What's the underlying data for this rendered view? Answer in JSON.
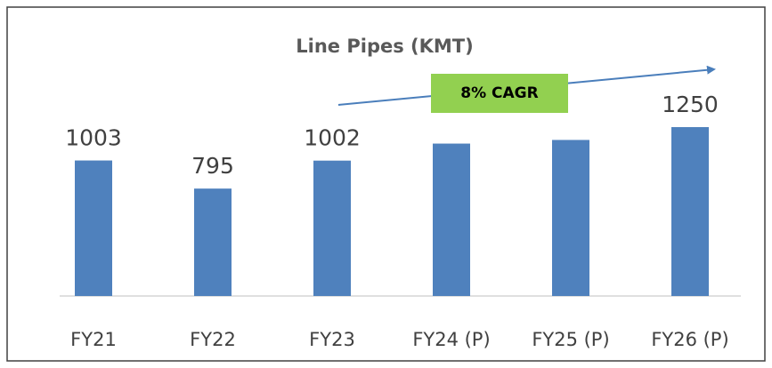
{
  "chart_data": {
    "type": "bar",
    "title": "Line Pipes (KMT)",
    "categories": [
      "FY21",
      "FY22",
      "FY23",
      "FY24 (P)",
      "FY25 (P)",
      "FY26 (P)"
    ],
    "values": [
      1003,
      795,
      1002,
      1128,
      1155,
      1250
    ],
    "value_labels": [
      "1003",
      "795",
      "1002",
      null,
      null,
      "1250"
    ],
    "color": "#4f81bd",
    "annotation": "8% CAGR",
    "annotation_color": "#92d050"
  }
}
